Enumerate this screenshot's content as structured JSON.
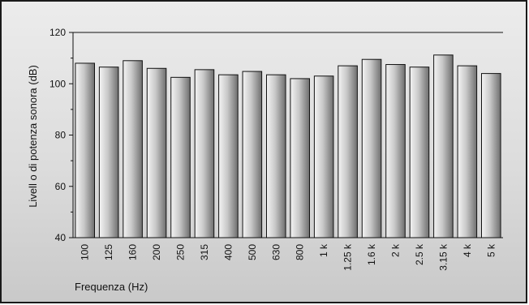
{
  "chart_data": {
    "type": "bar",
    "categories": [
      "100",
      "125",
      "160",
      "200",
      "250",
      "315",
      "400",
      "500",
      "630",
      "800",
      "1 k",
      "1.25 k",
      "1.6 k",
      "2 k",
      "2.5 k",
      "3.15 k",
      "4 k",
      "5 k"
    ],
    "values": [
      108,
      106.5,
      109,
      106,
      102.5,
      105.5,
      103.5,
      104.8,
      103.5,
      102,
      103,
      107,
      109.5,
      107.5,
      106.5,
      111.2,
      107,
      104
    ],
    "xlabel": "Frequenza (Hz)",
    "ylabel": "Livell o di potenza sonora (dB)",
    "ylim": [
      40,
      120
    ],
    "yticks": [
      "40",
      "60",
      "80",
      "100",
      "120"
    ],
    "ytick_values": [
      40,
      60,
      80,
      100,
      120
    ],
    "grid": false,
    "colors": {
      "bar_light": "#f4f4f4",
      "bar_mid": "#c8c8c8",
      "bar_dark": "#6e6e6e",
      "outline": "#111111"
    }
  }
}
